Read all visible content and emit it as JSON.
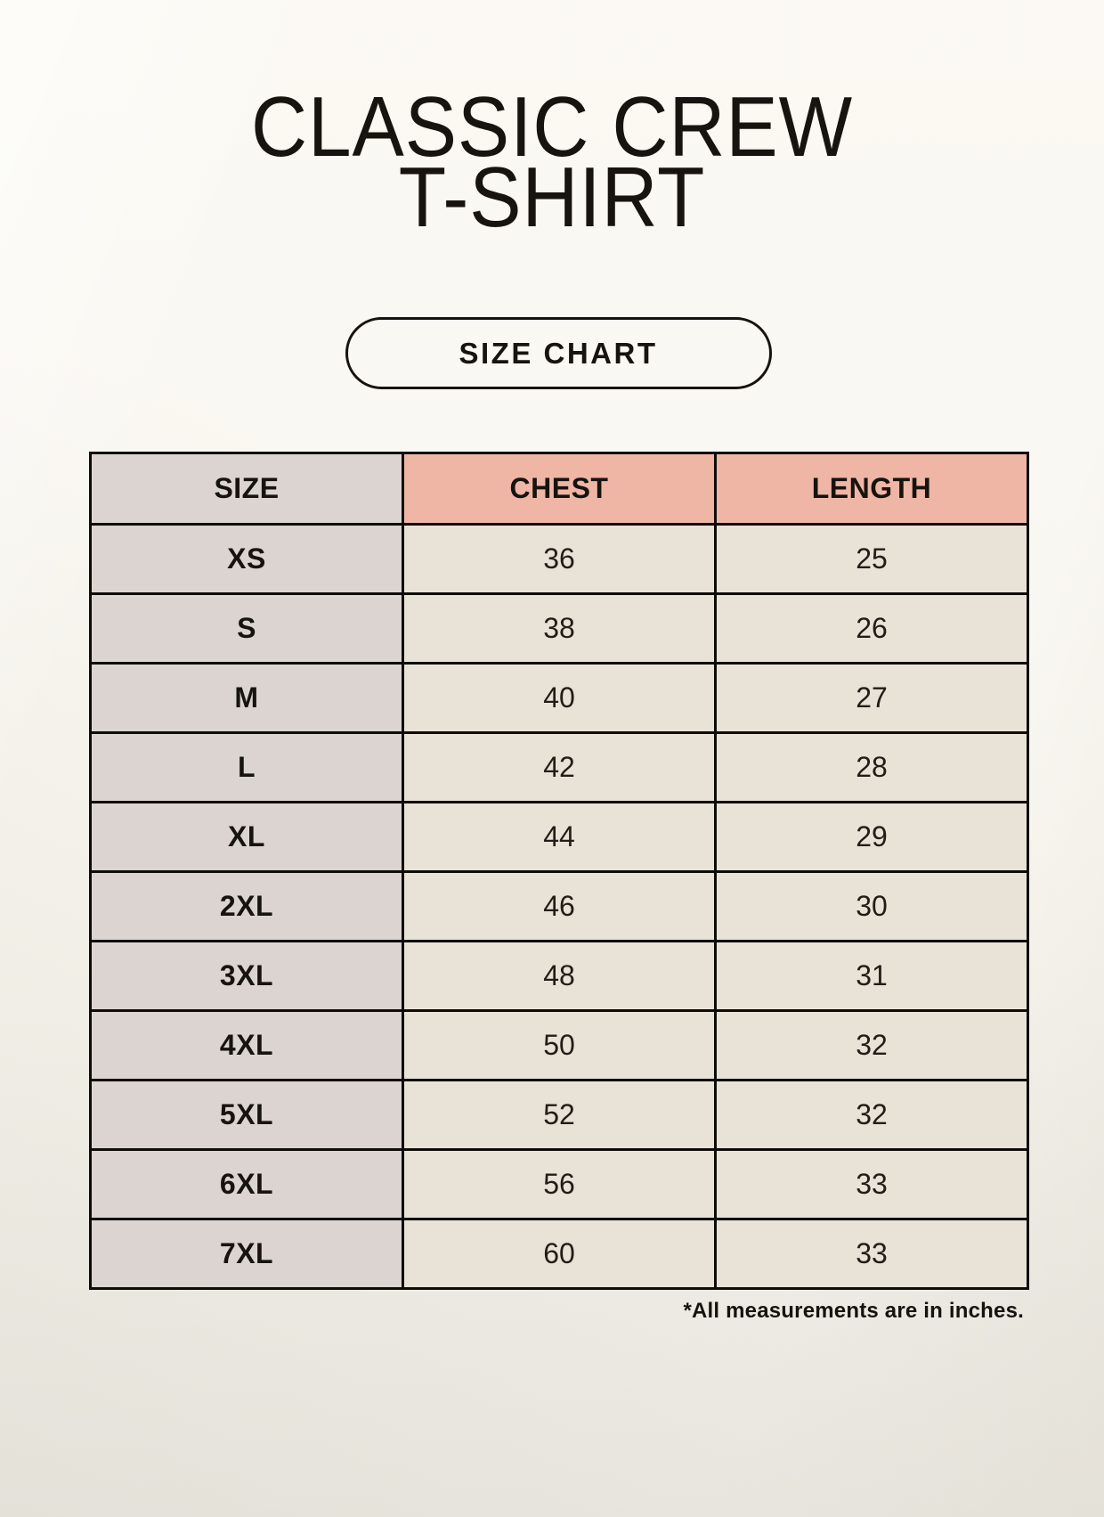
{
  "header": {
    "title_line1": "CLASSIC CREW",
    "title_line2": "T-SHIRT"
  },
  "size_chart_button": {
    "label": "SIZE CHART"
  },
  "table": {
    "columns": [
      "SIZE",
      "CHEST",
      "LENGTH"
    ],
    "rows": [
      {
        "size": "XS",
        "chest": "36",
        "length": "25"
      },
      {
        "size": "S",
        "chest": "38",
        "length": "26"
      },
      {
        "size": "M",
        "chest": "40",
        "length": "27"
      },
      {
        "size": "L",
        "chest": "42",
        "length": "28"
      },
      {
        "size": "XL",
        "chest": "44",
        "length": "29"
      },
      {
        "size": "2XL",
        "chest": "46",
        "length": "30"
      },
      {
        "size": "3XL",
        "chest": "48",
        "length": "31"
      },
      {
        "size": "4XL",
        "chest": "50",
        "length": "32"
      },
      {
        "size": "5XL",
        "chest": "52",
        "length": "32"
      },
      {
        "size": "6XL",
        "chest": "56",
        "length": "33"
      },
      {
        "size": "7XL",
        "chest": "60",
        "length": "33"
      }
    ]
  },
  "footnote": "*All measurements are in inches.",
  "colors": {
    "page_background": "#f6f3ea",
    "header_accent_pink": "#efb6a5",
    "size_column_gray": "#dcd4d0",
    "value_cell_beige": "#e9e2d6",
    "border_black": "#0e0c09",
    "text_ink": "#17130e"
  },
  "units_note": "inches"
}
